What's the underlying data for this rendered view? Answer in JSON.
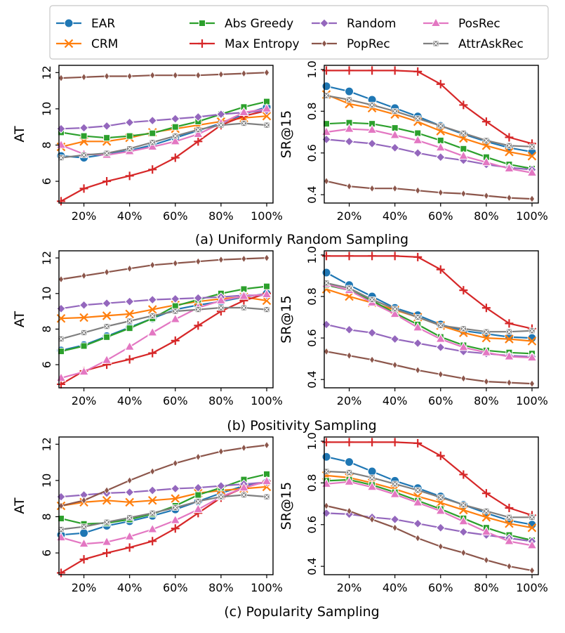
{
  "legend": [
    {
      "name": "EAR",
      "color": "#1f77b4",
      "marker": "circle"
    },
    {
      "name": "CRM",
      "color": "#ff7f0e",
      "marker": "x"
    },
    {
      "name": "Abs Greedy",
      "color": "#2ca02c",
      "marker": "square"
    },
    {
      "name": "Max Entropy",
      "color": "#d62728",
      "marker": "plus"
    },
    {
      "name": "Random",
      "color": "#9467bd",
      "marker": "diamond"
    },
    {
      "name": "PopRec",
      "color": "#8c564b",
      "marker": "thin_diamond"
    },
    {
      "name": "PosRec",
      "color": "#e377c2",
      "marker": "triangle"
    },
    {
      "name": "AttrAskRec",
      "color": "#7f7f7f",
      "marker": "xsquare"
    }
  ],
  "chart_data": [
    {
      "type": "line",
      "id": "a-at",
      "title": "(a) Uniformly Random Sampling",
      "xlabel": "",
      "ylabel": "AT",
      "x": [
        10,
        20,
        30,
        40,
        50,
        60,
        70,
        80,
        90,
        100
      ],
      "xticks": [
        "20%",
        "40%",
        "60%",
        "80%",
        "100%"
      ],
      "ylim": [
        4.8,
        12.4
      ],
      "yticks": [
        "6",
        "8",
        "10",
        "12"
      ],
      "series": [
        {
          "name": "EAR",
          "values": [
            7.4,
            7.3,
            7.5,
            7.7,
            8.0,
            8.4,
            8.8,
            9.2,
            9.7,
            10.1
          ]
        },
        {
          "name": "CRM",
          "values": [
            7.9,
            8.2,
            8.2,
            8.4,
            8.7,
            8.9,
            9.1,
            9.3,
            9.5,
            9.6
          ]
        },
        {
          "name": "Abs Greedy",
          "values": [
            8.7,
            8.5,
            8.4,
            8.5,
            8.65,
            9.0,
            9.3,
            9.7,
            10.1,
            10.4
          ]
        },
        {
          "name": "Max Entropy",
          "values": [
            4.9,
            5.6,
            6.0,
            6.3,
            6.65,
            7.3,
            8.2,
            9.1,
            9.6,
            9.9
          ]
        },
        {
          "name": "Random",
          "values": [
            8.9,
            8.95,
            9.05,
            9.25,
            9.35,
            9.45,
            9.55,
            9.7,
            9.8,
            9.9
          ]
        },
        {
          "name": "PopRec",
          "values": [
            11.7,
            11.75,
            11.8,
            11.8,
            11.85,
            11.85,
            11.85,
            11.9,
            11.95,
            12.0
          ]
        },
        {
          "name": "PosRec",
          "values": [
            8.0,
            7.5,
            7.45,
            7.65,
            7.9,
            8.2,
            8.6,
            9.2,
            9.8,
            10.0
          ]
        },
        {
          "name": "AttrAskRec",
          "values": [
            7.3,
            7.45,
            7.55,
            7.8,
            8.15,
            8.5,
            8.85,
            9.1,
            9.2,
            9.1
          ]
        }
      ]
    },
    {
      "type": "line",
      "id": "a-sr",
      "title": "(a) Uniformly Random Sampling",
      "xlabel": "",
      "ylabel": "SR@15",
      "x": [
        10,
        20,
        30,
        40,
        50,
        60,
        70,
        80,
        90,
        100
      ],
      "xticks": [
        "20%",
        "40%",
        "60%",
        "80%",
        "100%"
      ],
      "ylim": [
        0.36,
        1.02
      ],
      "yticks": [
        "0.4",
        "0.6",
        "0.8",
        "1.0"
      ],
      "series": [
        {
          "name": "EAR",
          "values": [
            0.92,
            0.895,
            0.855,
            0.815,
            0.775,
            0.73,
            0.69,
            0.655,
            0.625,
            0.605
          ]
        },
        {
          "name": "CRM",
          "values": [
            0.88,
            0.835,
            0.815,
            0.785,
            0.75,
            0.705,
            0.67,
            0.635,
            0.605,
            0.585
          ]
        },
        {
          "name": "Abs Greedy",
          "values": [
            0.74,
            0.745,
            0.74,
            0.72,
            0.695,
            0.66,
            0.62,
            0.58,
            0.545,
            0.525
          ]
        },
        {
          "name": "Max Entropy",
          "values": [
            0.995,
            0.995,
            0.995,
            0.995,
            0.99,
            0.93,
            0.83,
            0.75,
            0.675,
            0.645
          ]
        },
        {
          "name": "Random",
          "values": [
            0.665,
            0.655,
            0.645,
            0.625,
            0.6,
            0.58,
            0.565,
            0.545,
            0.53,
            0.52
          ]
        },
        {
          "name": "PopRec",
          "values": [
            0.465,
            0.44,
            0.43,
            0.43,
            0.42,
            0.41,
            0.405,
            0.395,
            0.385,
            0.38
          ]
        },
        {
          "name": "PosRec",
          "values": [
            0.7,
            0.715,
            0.71,
            0.685,
            0.66,
            0.625,
            0.585,
            0.555,
            0.525,
            0.505
          ]
        },
        {
          "name": "AttrAskRec",
          "values": [
            0.875,
            0.855,
            0.83,
            0.8,
            0.765,
            0.73,
            0.695,
            0.66,
            0.635,
            0.63
          ]
        }
      ]
    },
    {
      "type": "line",
      "id": "b-at",
      "title": "(b) Positivity Sampling",
      "xlabel": "",
      "ylabel": "AT",
      "x": [
        10,
        20,
        30,
        40,
        50,
        60,
        70,
        80,
        90,
        100
      ],
      "xticks": [
        "20%",
        "40%",
        "60%",
        "80%",
        "100%"
      ],
      "ylim": [
        4.7,
        12.4
      ],
      "yticks": [
        "6",
        "8",
        "10",
        "12"
      ],
      "series": [
        {
          "name": "EAR",
          "values": [
            6.8,
            7.1,
            7.6,
            8.1,
            8.6,
            9.1,
            9.35,
            9.55,
            9.8,
            10.0
          ]
        },
        {
          "name": "CRM",
          "values": [
            8.6,
            8.65,
            8.75,
            8.85,
            9.1,
            9.35,
            9.55,
            9.7,
            9.8,
            9.6
          ]
        },
        {
          "name": "Abs Greedy",
          "values": [
            6.75,
            7.05,
            7.55,
            8.05,
            8.6,
            9.3,
            9.65,
            10.0,
            10.25,
            10.4
          ]
        },
        {
          "name": "Max Entropy",
          "values": [
            4.9,
            5.65,
            6.0,
            6.3,
            6.65,
            7.35,
            8.2,
            9.0,
            9.6,
            10.0
          ]
        },
        {
          "name": "Random",
          "values": [
            9.15,
            9.35,
            9.45,
            9.55,
            9.65,
            9.7,
            9.75,
            9.8,
            9.9,
            9.9
          ]
        },
        {
          "name": "PopRec",
          "values": [
            10.8,
            11.0,
            11.2,
            11.4,
            11.6,
            11.7,
            11.8,
            11.9,
            11.95,
            12.0
          ]
        },
        {
          "name": "PosRec",
          "values": [
            5.25,
            5.6,
            6.25,
            7.0,
            7.8,
            8.55,
            9.2,
            9.6,
            9.85,
            9.95
          ]
        },
        {
          "name": "AttrAskRec",
          "values": [
            7.45,
            7.8,
            8.15,
            8.45,
            8.75,
            9.0,
            9.1,
            9.2,
            9.2,
            9.1
          ]
        }
      ]
    },
    {
      "type": "line",
      "id": "b-sr",
      "title": "(b) Positivity Sampling",
      "xlabel": "",
      "ylabel": "SR@15",
      "x": [
        10,
        20,
        30,
        40,
        50,
        60,
        70,
        80,
        90,
        100
      ],
      "xticks": [
        "20%",
        "40%",
        "60%",
        "80%",
        "100%"
      ],
      "ylim": [
        0.36,
        1.02
      ],
      "yticks": [
        "0.4",
        "0.6",
        "0.8",
        "1.0"
      ],
      "series": [
        {
          "name": "EAR",
          "values": [
            0.915,
            0.855,
            0.8,
            0.745,
            0.71,
            0.665,
            0.635,
            0.62,
            0.605,
            0.6
          ]
        },
        {
          "name": "CRM",
          "values": [
            0.835,
            0.8,
            0.77,
            0.735,
            0.7,
            0.66,
            0.625,
            0.6,
            0.595,
            0.585
          ]
        },
        {
          "name": "Abs Greedy",
          "values": [
            0.855,
            0.83,
            0.78,
            0.72,
            0.665,
            0.605,
            0.565,
            0.54,
            0.53,
            0.525
          ]
        },
        {
          "name": "Max Entropy",
          "values": [
            0.995,
            0.995,
            0.995,
            0.995,
            0.99,
            0.93,
            0.83,
            0.745,
            0.67,
            0.645
          ]
        },
        {
          "name": "Random",
          "values": [
            0.665,
            0.64,
            0.625,
            0.595,
            0.575,
            0.555,
            0.535,
            0.525,
            0.515,
            0.51
          ]
        },
        {
          "name": "PopRec",
          "values": [
            0.535,
            0.515,
            0.495,
            0.47,
            0.445,
            0.425,
            0.405,
            0.39,
            0.385,
            0.38
          ]
        },
        {
          "name": "PosRec",
          "values": [
            0.86,
            0.83,
            0.77,
            0.715,
            0.65,
            0.595,
            0.555,
            0.53,
            0.51,
            0.505
          ]
        },
        {
          "name": "AttrAskRec",
          "values": [
            0.865,
            0.84,
            0.785,
            0.74,
            0.7,
            0.66,
            0.645,
            0.63,
            0.63,
            0.635
          ]
        }
      ]
    },
    {
      "type": "line",
      "id": "c-at",
      "title": "(c) Popularity Sampling",
      "xlabel": "",
      "ylabel": "AT",
      "x": [
        10,
        20,
        30,
        40,
        50,
        60,
        70,
        80,
        90,
        100
      ],
      "xticks": [
        "20%",
        "40%",
        "60%",
        "80%",
        "100%"
      ],
      "ylim": [
        4.8,
        12.4
      ],
      "yticks": [
        "6",
        "8",
        "10",
        "12"
      ],
      "series": [
        {
          "name": "EAR",
          "values": [
            7.0,
            7.1,
            7.5,
            7.75,
            8.05,
            8.4,
            8.85,
            9.3,
            9.7,
            9.9
          ]
        },
        {
          "name": "CRM",
          "values": [
            8.6,
            8.8,
            8.9,
            8.8,
            8.9,
            9.0,
            9.3,
            9.45,
            9.55,
            9.65
          ]
        },
        {
          "name": "Abs Greedy",
          "values": [
            7.9,
            7.6,
            7.65,
            7.85,
            8.15,
            8.6,
            9.2,
            9.6,
            10.05,
            10.35
          ]
        },
        {
          "name": "Max Entropy",
          "values": [
            4.9,
            5.65,
            6.0,
            6.3,
            6.65,
            7.35,
            8.2,
            9.05,
            9.6,
            9.95
          ]
        },
        {
          "name": "Random",
          "values": [
            9.1,
            9.2,
            9.3,
            9.35,
            9.45,
            9.55,
            9.6,
            9.7,
            9.8,
            9.9
          ]
        },
        {
          "name": "PopRec",
          "values": [
            8.6,
            8.9,
            9.45,
            10.0,
            10.5,
            10.95,
            11.3,
            11.6,
            11.8,
            11.95
          ]
        },
        {
          "name": "PosRec",
          "values": [
            6.85,
            6.5,
            6.6,
            6.9,
            7.3,
            7.8,
            8.4,
            9.1,
            9.6,
            9.95
          ]
        },
        {
          "name": "AttrAskRec",
          "values": [
            7.3,
            7.45,
            7.7,
            7.95,
            8.2,
            8.5,
            8.85,
            9.1,
            9.2,
            9.1
          ]
        }
      ]
    },
    {
      "type": "line",
      "id": "c-sr",
      "title": "(c) Popularity Sampling",
      "xlabel": "",
      "ylabel": "SR@15",
      "x": [
        10,
        20,
        30,
        40,
        50,
        60,
        70,
        80,
        90,
        100
      ],
      "xticks": [
        "20%",
        "40%",
        "60%",
        "80%",
        "100%"
      ],
      "ylim": [
        0.36,
        1.02
      ],
      "yticks": [
        "0.4",
        "0.6",
        "0.8",
        "1.0"
      ],
      "series": [
        {
          "name": "EAR",
          "values": [
            0.925,
            0.9,
            0.855,
            0.81,
            0.775,
            0.735,
            0.695,
            0.655,
            0.62,
            0.6
          ]
        },
        {
          "name": "CRM",
          "values": [
            0.835,
            0.825,
            0.8,
            0.77,
            0.735,
            0.705,
            0.67,
            0.635,
            0.605,
            0.585
          ]
        },
        {
          "name": "Abs Greedy",
          "values": [
            0.81,
            0.815,
            0.79,
            0.755,
            0.715,
            0.675,
            0.63,
            0.585,
            0.55,
            0.525
          ]
        },
        {
          "name": "Max Entropy",
          "values": [
            0.995,
            0.995,
            0.995,
            0.995,
            0.99,
            0.93,
            0.84,
            0.75,
            0.68,
            0.645
          ]
        },
        {
          "name": "Random",
          "values": [
            0.655,
            0.65,
            0.635,
            0.625,
            0.605,
            0.585,
            0.565,
            0.55,
            0.535,
            0.52
          ]
        },
        {
          "name": "PopRec",
          "values": [
            0.69,
            0.665,
            0.625,
            0.585,
            0.535,
            0.495,
            0.465,
            0.43,
            0.4,
            0.38
          ]
        },
        {
          "name": "PosRec",
          "values": [
            0.795,
            0.805,
            0.78,
            0.745,
            0.705,
            0.665,
            0.615,
            0.565,
            0.52,
            0.5
          ]
        },
        {
          "name": "AttrAskRec",
          "values": [
            0.855,
            0.85,
            0.825,
            0.795,
            0.765,
            0.73,
            0.695,
            0.665,
            0.635,
            0.635
          ]
        }
      ]
    }
  ]
}
